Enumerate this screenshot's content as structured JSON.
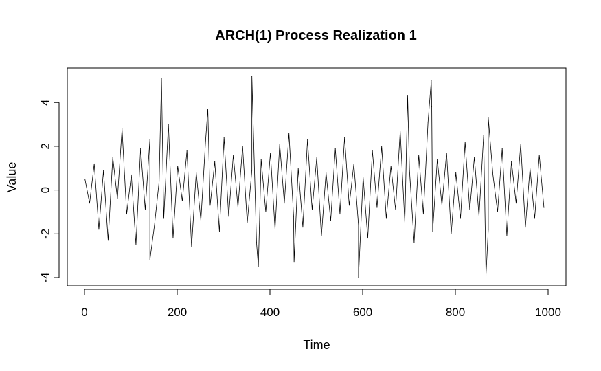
{
  "chart_data": {
    "type": "line",
    "title": "ARCH(1) Process Realization 1",
    "xlabel": "Time",
    "ylabel": "Value",
    "xlim": [
      0,
      1000
    ],
    "ylim": [
      -4,
      5.2
    ],
    "x_ticks": [
      0,
      200,
      400,
      600,
      800,
      1000
    ],
    "y_ticks": [
      -4,
      -2,
      0,
      2,
      4
    ],
    "x_tick_labels": [
      "0",
      "200",
      "400",
      "600",
      "800",
      "1000"
    ],
    "y_tick_labels": [
      "-4",
      "-2",
      "0",
      "2",
      "4"
    ],
    "grid": false,
    "legend": "none",
    "line_color": "#000000",
    "series": [
      {
        "x_start": 1,
        "x_step": 10,
        "values": [
          0.5,
          -0.6,
          1.2,
          -1.8,
          0.9,
          -2.3,
          1.5,
          -0.4,
          2.8,
          -1.1,
          0.7,
          -2.5,
          1.9,
          -0.9,
          2.3,
          -1.6,
          0.4,
          -1.3,
          3.0,
          -2.2,
          1.1,
          -0.5,
          1.8,
          -2.6,
          0.8,
          -1.4,
          2.2,
          -0.7,
          1.3,
          -1.9,
          2.4,
          -1.2,
          1.6,
          -0.8,
          2.0,
          -1.5,
          0.9,
          -2.4,
          1.4,
          -1.0,
          1.7,
          -1.8,
          2.1,
          -0.6,
          2.6,
          -1.2,
          1.0,
          -1.7,
          2.3,
          -0.9,
          1.5,
          -2.1,
          0.8,
          -1.4,
          1.9,
          -1.1,
          2.4,
          -0.7,
          1.2,
          -1.6,
          0.6,
          -2.2,
          1.8,
          -0.8,
          2.0,
          -1.3,
          1.1,
          -0.9,
          2.7,
          -1.5,
          0.9,
          -2.4,
          1.6,
          -1.1,
          3.1,
          -1.9,
          1.4,
          -0.7,
          1.7,
          -2.0,
          0.8,
          -1.3,
          2.2,
          -0.9,
          1.5,
          -1.2,
          2.5,
          -1.8,
          0.7,
          -1.0,
          1.9,
          -2.1,
          1.3,
          -0.6,
          2.1,
          -1.7,
          1.0,
          -1.3,
          1.6,
          -0.8
        ]
      }
    ],
    "annotated_peaks": [
      {
        "x": 141,
        "y": -3.2
      },
      {
        "x": 166,
        "y": 5.1
      },
      {
        "x": 266,
        "y": 3.7
      },
      {
        "x": 361,
        "y": 5.2
      },
      {
        "x": 375,
        "y": -3.5
      },
      {
        "x": 452,
        "y": -3.3
      },
      {
        "x": 591,
        "y": -4.0
      },
      {
        "x": 697,
        "y": 4.3
      },
      {
        "x": 748,
        "y": 5.0
      },
      {
        "x": 749,
        "y": 3.8
      },
      {
        "x": 866,
        "y": -3.9
      },
      {
        "x": 871,
        "y": 3.3
      }
    ]
  }
}
